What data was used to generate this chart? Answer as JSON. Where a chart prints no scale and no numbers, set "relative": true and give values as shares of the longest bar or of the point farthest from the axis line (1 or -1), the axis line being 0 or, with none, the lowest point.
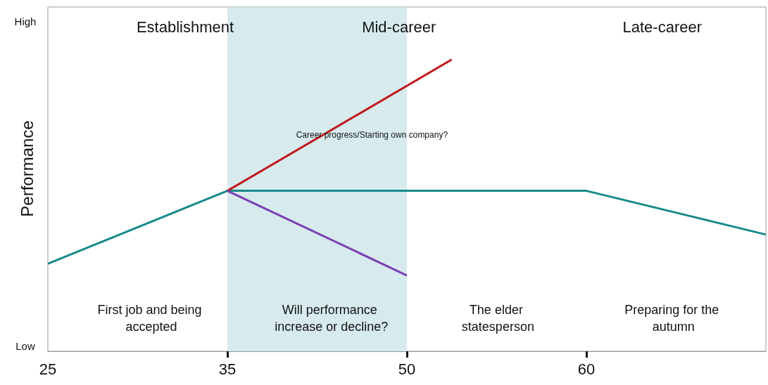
{
  "chart_data": {
    "type": "line",
    "relative": true,
    "ylabel": "Performance",
    "categories": [
      "25",
      null,
      null,
      null,
      "35",
      null,
      null,
      null,
      "50",
      null,
      null,
      null,
      "60",
      null,
      null,
      null,
      null
    ],
    "series": [
      {
        "color": "#178a8a",
        "values": [
          0.3,
          null,
          null,
          null,
          0.55,
          null,
          null,
          null,
          null,
          null,
          null,
          null,
          0.55,
          null,
          null,
          null,
          0.4
        ]
      },
      {
        "color": "#c0171c",
        "values": [
          null,
          null,
          null,
          null,
          0.55,
          null,
          null,
          null,
          null,
          1,
          null,
          null,
          null,
          null,
          null,
          null,
          null
        ]
      },
      {
        "color": "#7b3fb5",
        "values": [
          null,
          null,
          null,
          null,
          0.55,
          null,
          null,
          null,
          0.26,
          null,
          null,
          null,
          null,
          null,
          null,
          null,
          null
        ]
      }
    ],
    "bands": [
      {
        "axis": "x",
        "from": "35",
        "to": "50",
        "color": "#cde6ea"
      }
    ],
    "annotations": [
      "High",
      "Low",
      "Establishment",
      "Mid-career",
      "Late-career",
      "Career progress/Starting own company?",
      "First job and being accepted",
      "Will performance increase or decline?",
      "The elder statesperson",
      "Preparing for the autumn"
    ],
    "marker": "none",
    "line_style": "solid"
  }
}
